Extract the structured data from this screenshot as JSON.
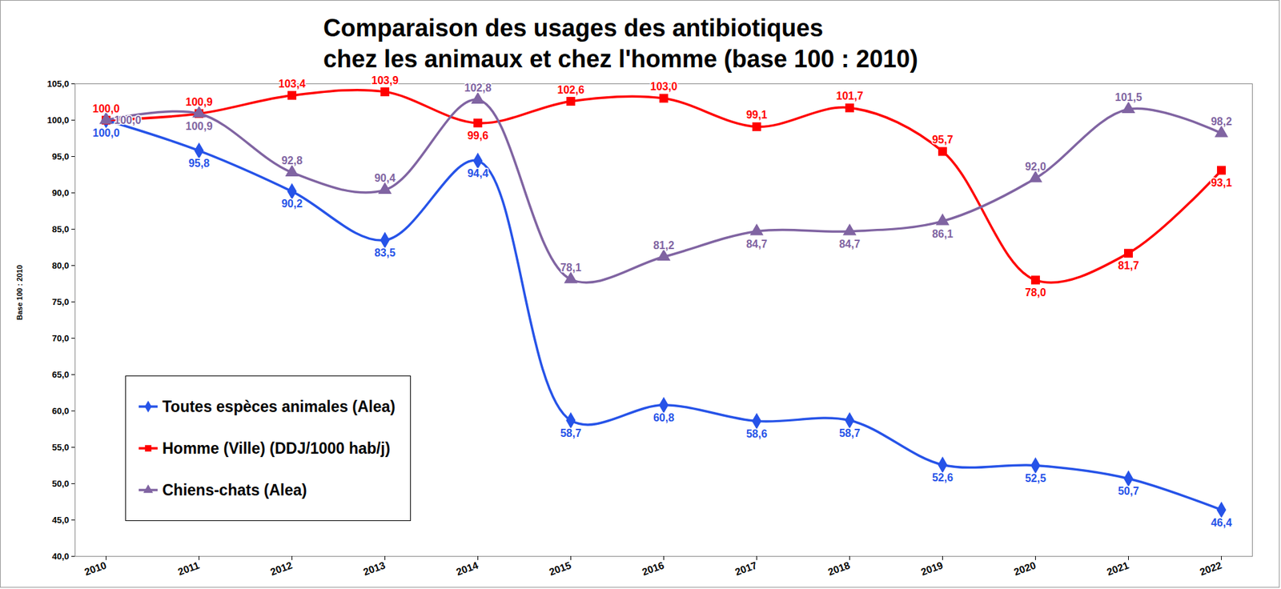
{
  "chart_data": {
    "type": "line",
    "title": "Comparaison des usages des antibiotiques\nchez les animaux et chez l'homme (base 100 : 2010)",
    "y_label": "Base 100 : 2010",
    "categories": [
      "2010",
      "2011",
      "2012",
      "2013",
      "2014",
      "2015",
      "2016",
      "2017",
      "2018",
      "2019",
      "2020",
      "2021",
      "2022"
    ],
    "ylim": [
      40,
      105
    ],
    "yticks": [
      {
        "value": 40,
        "label": "40,0"
      },
      {
        "value": 45,
        "label": "45,0"
      },
      {
        "value": 50,
        "label": "50,0"
      },
      {
        "value": 55,
        "label": "55,0"
      },
      {
        "value": 60,
        "label": "60,0"
      },
      {
        "value": 65,
        "label": "65,0"
      },
      {
        "value": 70,
        "label": "70,0"
      },
      {
        "value": 75,
        "label": "75,0"
      },
      {
        "value": 80,
        "label": "80,0"
      },
      {
        "value": 85,
        "label": "85,0"
      },
      {
        "value": 90,
        "label": "90,0"
      },
      {
        "value": 95,
        "label": "95,0"
      },
      {
        "value": 100,
        "label": "100,0"
      },
      {
        "value": 105,
        "label": "105,0"
      }
    ],
    "grid": false,
    "legend": "bottom-left",
    "data_labels": true,
    "line_style": "smooth",
    "series": [
      {
        "name": "Toutes espèces animales (Alea)",
        "color": "#2653e8",
        "marker": "diamond",
        "values": [
          100.0,
          95.8,
          90.2,
          83.5,
          94.4,
          58.7,
          60.8,
          58.6,
          58.7,
          52.6,
          52.5,
          50.7,
          46.4
        ],
        "value_labels": [
          "100,0",
          "95,8",
          "90,2",
          "83,5",
          "94,4",
          "58,7",
          "60,8",
          "58,6",
          "58,7",
          "52,6",
          "52,5",
          "50,7",
          "46,4"
        ]
      },
      {
        "name": "Homme (Ville) (DDJ/1000 hab/j)",
        "color": "#ff0000",
        "marker": "square",
        "values": [
          100.0,
          100.9,
          103.4,
          103.9,
          99.6,
          102.6,
          103.0,
          99.1,
          101.7,
          95.7,
          78.0,
          81.7,
          93.1
        ],
        "value_labels": [
          "100,0",
          "100,9",
          "103,4",
          "103,9",
          "99,6",
          "102,6",
          "103,0",
          "99,1",
          "101,7",
          "95,7",
          "78,0",
          "81,7",
          "93,1"
        ]
      },
      {
        "name": "Chiens-chats (Alea)",
        "color": "#8064a2",
        "marker": "triangle",
        "values": [
          100.0,
          100.9,
          92.8,
          90.4,
          102.8,
          78.1,
          81.2,
          84.7,
          84.7,
          86.1,
          92.0,
          101.5,
          98.2
        ],
        "value_labels": [
          "100,0",
          "100,9",
          "92,8",
          "90,4",
          "102,8",
          "78,1",
          "81,2",
          "84,7",
          "84,7",
          "86,1",
          "92,0",
          "101,5",
          "98,2"
        ]
      }
    ]
  }
}
